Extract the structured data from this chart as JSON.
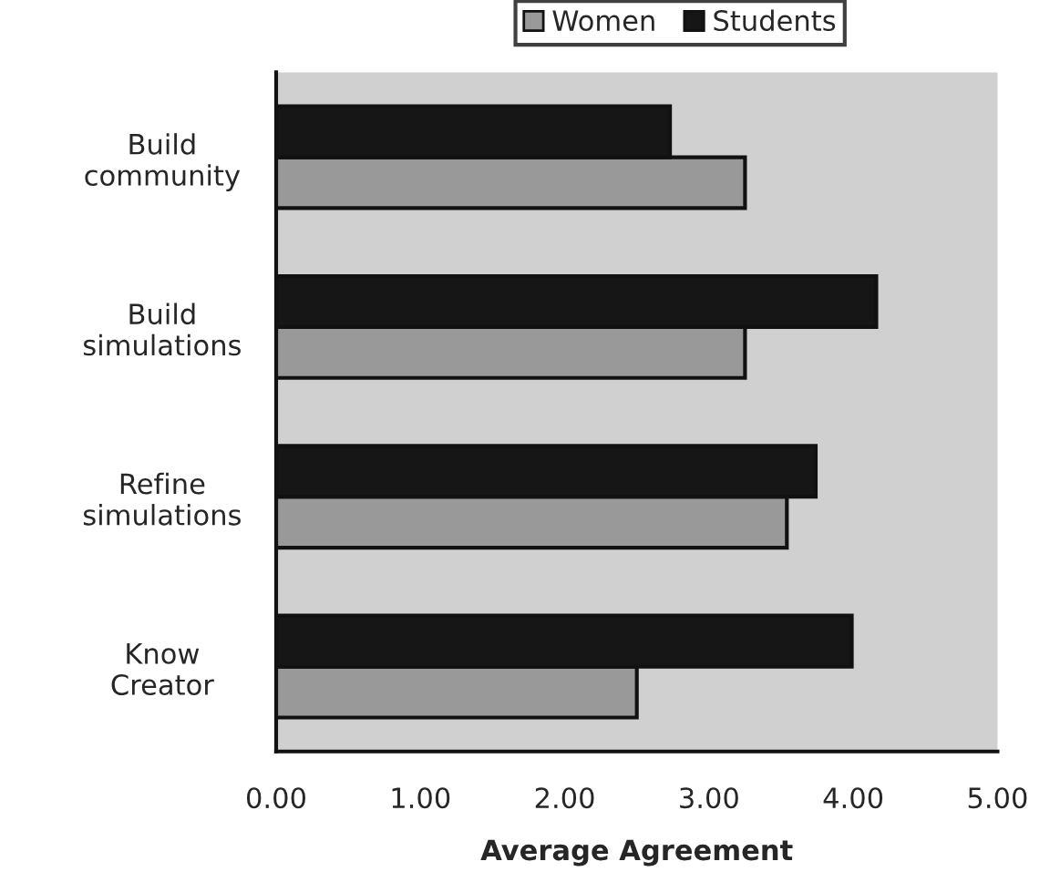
{
  "chart_data": {
    "type": "bar",
    "orientation": "horizontal",
    "xlabel": "Average Agreement",
    "categories": [
      "Build\ncommunity",
      "Build\nsimulations",
      "Refine\nsimulations",
      "Know\nCreator"
    ],
    "series": [
      {
        "name": "Women",
        "color": "#999999",
        "values": [
          3.25,
          3.25,
          3.54,
          2.5
        ]
      },
      {
        "name": "Students",
        "color": "#161616",
        "values": [
          2.73,
          4.16,
          3.74,
          3.99
        ]
      }
    ],
    "xlim": [
      0,
      5
    ],
    "xticks": [
      {
        "value": 0,
        "label": "0.00"
      },
      {
        "value": 1,
        "label": "1.00"
      },
      {
        "value": 2,
        "label": "2.00"
      },
      {
        "value": 3,
        "label": "3.00"
      },
      {
        "value": 4,
        "label": "4.00"
      },
      {
        "value": 5,
        "label": "5.00"
      }
    ],
    "grid": false,
    "legend": "top"
  }
}
